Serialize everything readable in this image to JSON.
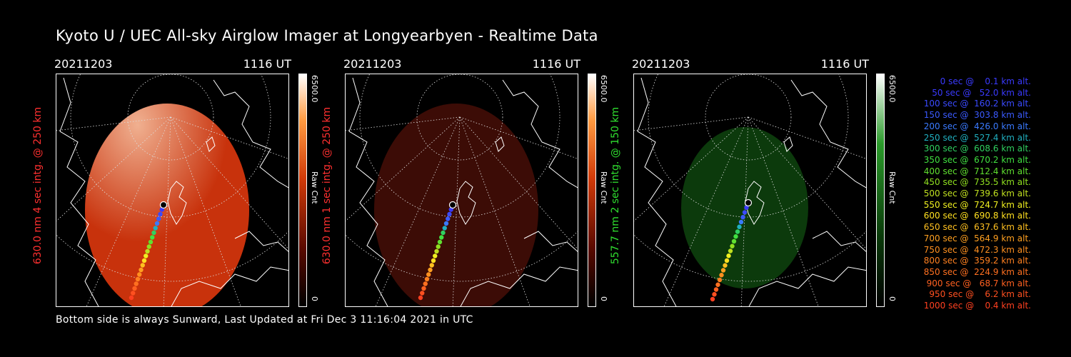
{
  "title": "Kyoto U / UEC All-sky Airglow Imager at Longyearbyen - Realtime Data",
  "footer": "Bottom side is always Sunward, Last Updated at Fri Dec  3 11:16:04 2021 in UTC",
  "panels": [
    {
      "date": "20211203",
      "time": "1116 UT",
      "ylabel": "630.0 nm 4 sec intg. @ 250 km",
      "ylabel_color": "#ff3030",
      "cbar_max": "6500.0",
      "cbar_min": "0",
      "cbar_unit": "Raw Cnt",
      "colormap": "red",
      "image_color": "#c8320c",
      "brightness": "bright"
    },
    {
      "date": "20211203",
      "time": "1116 UT",
      "ylabel": "630.0 nm 1 sec intg. @ 250 km",
      "ylabel_color": "#ff3030",
      "cbar_max": "6500.0",
      "cbar_min": "0",
      "cbar_unit": "Raw Cnt",
      "colormap": "red",
      "image_color": "#3c0c06",
      "brightness": "dim"
    },
    {
      "date": "20211203",
      "time": "1116 UT",
      "ylabel": "557.7 nm 2 sec intg. @ 150 km",
      "ylabel_color": "#30e030",
      "cbar_max": "6500.0",
      "cbar_min": "0",
      "cbar_unit": "Raw Cnt",
      "colormap": "green",
      "image_color": "#0c3a0c",
      "brightness": "dim"
    }
  ],
  "legend": [
    {
      "text": "   0 sec @    0.1 km alt.",
      "color": "#3a3aff"
    },
    {
      "text": "  50 sec @   52.0 km alt.",
      "color": "#3a3aff"
    },
    {
      "text": " 100 sec @  160.2 km alt.",
      "color": "#3a4aff"
    },
    {
      "text": " 150 sec @  303.8 km alt.",
      "color": "#3a5aff"
    },
    {
      "text": " 200 sec @  426.0 km alt.",
      "color": "#3a7aff"
    },
    {
      "text": " 250 sec @  527.4 km alt.",
      "color": "#20b0c0"
    },
    {
      "text": " 300 sec @  608.6 km alt.",
      "color": "#30d060"
    },
    {
      "text": " 350 sec @  670.2 km alt.",
      "color": "#40e040"
    },
    {
      "text": " 400 sec @  712.4 km alt.",
      "color": "#60e030"
    },
    {
      "text": " 450 sec @  735.5 km alt.",
      "color": "#90e020"
    },
    {
      "text": " 500 sec @  739.6 km alt.",
      "color": "#c0e020"
    },
    {
      "text": " 550 sec @  724.7 km alt.",
      "color": "#f0f020"
    },
    {
      "text": " 600 sec @  690.8 km alt.",
      "color": "#ffe020"
    },
    {
      "text": " 650 sec @  637.6 km alt.",
      "color": "#ffc020"
    },
    {
      "text": " 700 sec @  564.9 km alt.",
      "color": "#ffa020"
    },
    {
      "text": " 750 sec @  472.3 km alt.",
      "color": "#ff9020"
    },
    {
      "text": " 800 sec @  359.2 km alt.",
      "color": "#ff8020"
    },
    {
      "text": " 850 sec @  224.9 km alt.",
      "color": "#ff7020"
    },
    {
      "text": " 900 sec @   68.7 km alt.",
      "color": "#ff6020"
    },
    {
      "text": " 950 sec @    6.2 km alt.",
      "color": "#ff5020"
    },
    {
      "text": "1000 sec @    0.4 km alt.",
      "color": "#ff4020"
    }
  ]
}
